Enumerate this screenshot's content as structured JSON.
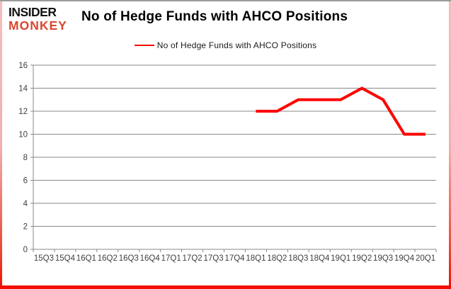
{
  "logo": {
    "line1": "INSIDER",
    "line2": "MONKEY"
  },
  "header": {
    "title": "No of Hedge Funds with AHCO Positions"
  },
  "legend": {
    "label": "No of Hedge Funds with AHCO Positions"
  },
  "colors": {
    "series_line": "#fe0101",
    "gridline": "#898989",
    "axis_text": "#404040",
    "title_text": "#000000",
    "logo_black": "#121212",
    "logo_red": "#d8472e"
  },
  "chart_data": {
    "type": "line",
    "title": "No of Hedge Funds with AHCO Positions",
    "xlabel": "",
    "ylabel": "",
    "categories": [
      "15Q3",
      "15Q4",
      "16Q1",
      "16Q2",
      "16Q3",
      "16Q4",
      "17Q1",
      "17Q2",
      "17Q3",
      "17Q4",
      "18Q1",
      "18Q2",
      "18Q3",
      "18Q4",
      "19Q1",
      "19Q2",
      "19Q3",
      "19Q4",
      "20Q1"
    ],
    "series": [
      {
        "name": "No of Hedge Funds with AHCO Positions",
        "color": "#fe0101",
        "values": [
          null,
          null,
          null,
          null,
          null,
          null,
          null,
          null,
          null,
          null,
          12,
          12,
          13,
          13,
          13,
          14,
          13,
          10,
          10
        ]
      }
    ],
    "ylim": [
      0,
      16
    ],
    "ytick_step": 2,
    "grid": "horizontal",
    "legend_position": "top"
  }
}
